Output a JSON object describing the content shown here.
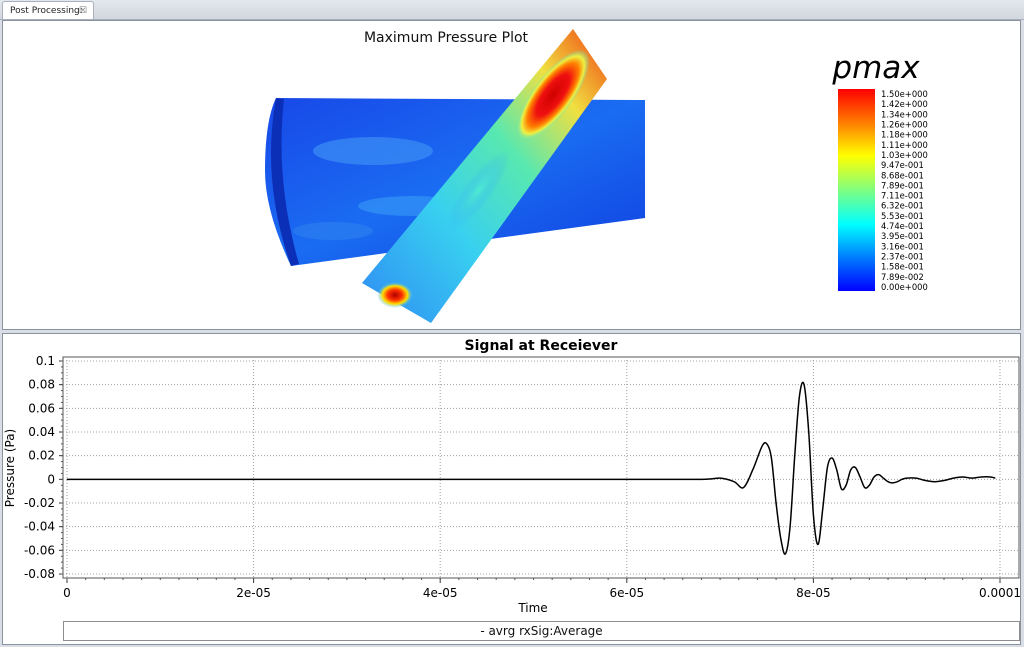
{
  "tab": {
    "label": "Post Processing:",
    "close_symbol": "☒"
  },
  "viewport": {
    "title": "Maximum Pressure Plot",
    "colorbar": {
      "name": "pmax",
      "labels": [
        "1.50e+000",
        "1.42e+000",
        "1.34e+000",
        "1.26e+000",
        "1.18e+000",
        "1.11e+000",
        "1.03e+000",
        "9.47e-001",
        "8.68e-001",
        "7.89e-001",
        "7.11e-001",
        "6.32e-001",
        "5.53e-001",
        "4.74e-001",
        "3.95e-001",
        "3.16e-001",
        "2.37e-001",
        "1.58e-001",
        "7.89e-002",
        "0.00e+000"
      ],
      "min": 0,
      "max": 1.5,
      "colors": [
        "#0000ff",
        "#0080ff",
        "#00ffff",
        "#80ff80",
        "#ffff00",
        "#ff8000",
        "#ff0000"
      ]
    }
  },
  "plot": {
    "title": "Signal at Receiever",
    "xlabel": "Time",
    "ylabel": "Pressure (Pa)",
    "legend": "- avrg rxSig:Average"
  },
  "chart_data": {
    "type": "line",
    "title": "Signal at Receiever",
    "xlabel": "Time",
    "ylabel": "Pressure (Pa)",
    "xlim": [
      0,
      0.0001
    ],
    "ylim": [
      -0.08,
      0.1
    ],
    "x_ticks": [
      "0",
      "2e-05",
      "4e-05",
      "6e-05",
      "8e-05",
      "0.0001"
    ],
    "y_ticks": [
      "0.1",
      "0.08",
      "0.06",
      "0.04",
      "0.02",
      "0",
      "-0.02",
      "-0.04",
      "-0.06",
      "-0.08"
    ],
    "grid": true,
    "series": [
      {
        "name": "avrg rxSig:Average",
        "color": "#000000",
        "x": [
          0,
          1e-05,
          2e-05,
          3e-05,
          4e-05,
          5e-05,
          6e-05,
          6.8e-05,
          7e-05,
          7.15e-05,
          7.25e-05,
          7.35e-05,
          7.45e-05,
          7.5e-05,
          7.55e-05,
          7.6e-05,
          7.65e-05,
          7.7e-05,
          7.75e-05,
          7.8e-05,
          7.85e-05,
          7.9e-05,
          7.95e-05,
          8e-05,
          8.05e-05,
          8.1e-05,
          8.15e-05,
          8.2e-05,
          8.25e-05,
          8.3e-05,
          8.35e-05,
          8.4e-05,
          8.45e-05,
          8.5e-05,
          8.55e-05,
          8.6e-05,
          8.65e-05,
          8.7e-05,
          8.75e-05,
          8.8e-05,
          8.85e-05,
          8.9e-05,
          8.95e-05,
          9e-05,
          9.1e-05,
          9.2e-05,
          9.3e-05,
          9.4e-05,
          9.5e-05,
          9.6e-05,
          9.7e-05,
          9.8e-05,
          9.9e-05,
          9.95e-05
        ],
        "y": [
          0,
          0,
          0,
          0,
          0,
          0,
          0,
          0,
          0.001,
          -0.002,
          -0.007,
          0.008,
          0.028,
          0.03,
          0.018,
          -0.02,
          -0.05,
          -0.063,
          -0.04,
          0.02,
          0.07,
          0.08,
          0.04,
          -0.03,
          -0.055,
          -0.025,
          0.01,
          0.018,
          0.008,
          -0.008,
          -0.005,
          0.008,
          0.01,
          0.002,
          -0.007,
          -0.005,
          0.002,
          0.004,
          0.001,
          -0.002,
          -0.003,
          -0.002,
          0,
          0.001,
          0.001,
          -0.001,
          -0.002,
          -0.001,
          0.001,
          0.002,
          0.001,
          0.002,
          0.002,
          0.001
        ]
      }
    ],
    "legend_position": "bottom"
  }
}
